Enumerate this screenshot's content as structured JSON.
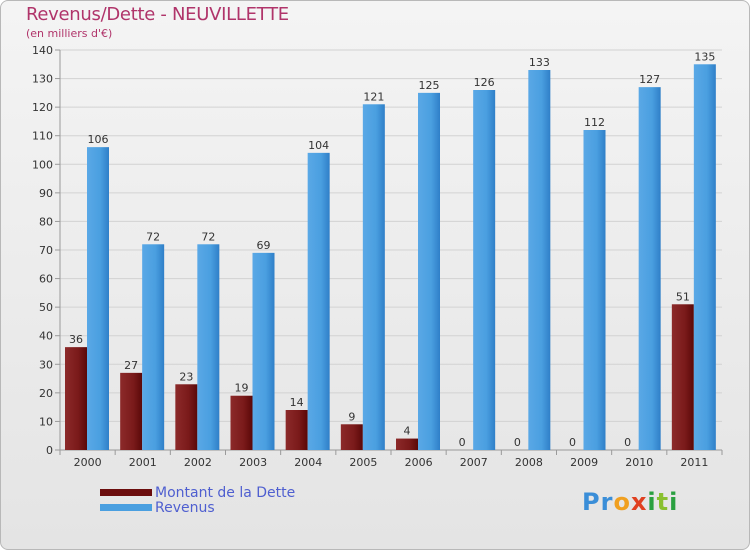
{
  "header": {
    "title": "Revenus/Dette - NEUVILLETTE",
    "subtitle": "(en milliers d'€)"
  },
  "colors": {
    "title": "#b0346a",
    "dette": "#7a1010",
    "revenus": "#4a9fe0",
    "legend_text": "#4f5fd0"
  },
  "chart_data": {
    "type": "bar",
    "title": "Revenus/Dette - NEUVILLETTE",
    "ylabel": "(en milliers d'€)",
    "xlabel": "",
    "ylim": [
      0,
      140
    ],
    "ytick_step": 10,
    "grid": true,
    "legend_position": "bottom-left",
    "categories": [
      "2000",
      "2001",
      "2002",
      "2003",
      "2004",
      "2005",
      "2006",
      "2007",
      "2008",
      "2009",
      "2010",
      "2011"
    ],
    "series": [
      {
        "name": "Montant de la Dette",
        "color": "#7a1010",
        "values": [
          36,
          27,
          23,
          19,
          14,
          9,
          4,
          0,
          0,
          0,
          0,
          51
        ]
      },
      {
        "name": "Revenus",
        "color": "#4a9fe0",
        "values": [
          106,
          72,
          72,
          69,
          104,
          121,
          125,
          126,
          133,
          112,
          127,
          135
        ]
      }
    ]
  },
  "legend": {
    "items": [
      {
        "label": "Montant de la Dette",
        "color": "#6b0d0d"
      },
      {
        "label": "Revenus",
        "color": "#4a9fe0"
      }
    ]
  },
  "brand": {
    "letters": [
      {
        "ch": "P",
        "color": "#3a8ed8"
      },
      {
        "ch": "r",
        "color": "#3a8ed8"
      },
      {
        "ch": "o",
        "color": "#f0a020"
      },
      {
        "ch": "x",
        "color": "#e04020"
      },
      {
        "ch": "i",
        "color": "#2aa040"
      },
      {
        "ch": "t",
        "color": "#8ac030"
      },
      {
        "ch": "i",
        "color": "#2aa040"
      }
    ]
  }
}
